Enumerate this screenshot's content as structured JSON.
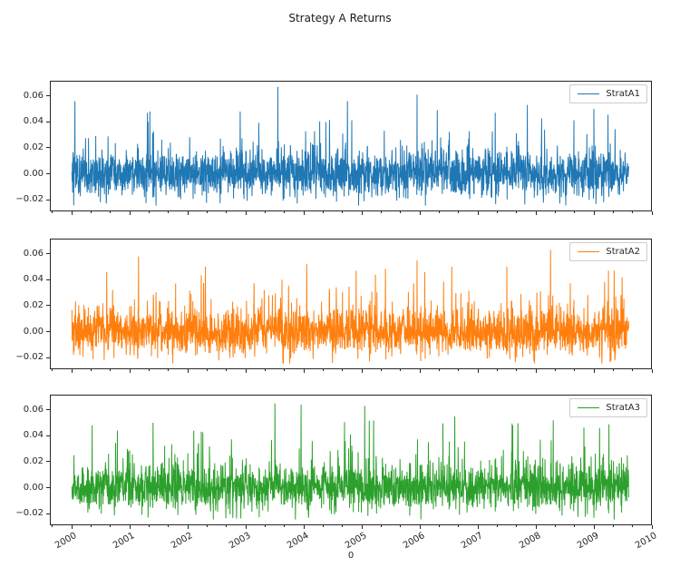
{
  "figure": {
    "title": "Strategy A Returns",
    "background": "#ffffff"
  },
  "chart_data": {
    "type": "line",
    "title": "Strategy A Returns",
    "xlabel": "0",
    "ylabel": "",
    "grid": false,
    "legend_position": "upper right",
    "n_subplots": 3,
    "shared_x": true,
    "xlim": [
      1999.62,
      2010.0
    ],
    "ylim": [
      -0.029,
      0.0717
    ],
    "x_data_range": [
      2000.0,
      2009.6
    ],
    "n_points": 2450,
    "x_ticks": {
      "values": [
        2000,
        2001,
        2002,
        2003,
        2004,
        2005,
        2006,
        2007,
        2008,
        2009,
        2010
      ],
      "labels": [
        "2000",
        "2001",
        "2002",
        "2003",
        "2004",
        "2005",
        "2006",
        "2007",
        "2008",
        "2009",
        "2010"
      ],
      "rotation_deg": 30,
      "minor_per_interval": 2
    },
    "y_ticks": {
      "values": [
        0.06,
        0.04,
        0.02,
        0.0,
        -0.02
      ],
      "labels": [
        "0.06",
        "0.04",
        "0.02",
        "0.00",
        "−0.02"
      ]
    },
    "series": [
      {
        "name": "StratA1",
        "color": "#1f77b4",
        "seed": 101,
        "noise_std": 0.0085,
        "spike_prob": 0.05,
        "spike_base": 0.012,
        "spike_scale": 0.013,
        "clip_min": -0.0245,
        "data_min": -0.0245,
        "data_max": 0.067,
        "peaks": [
          {
            "x": 2000.05,
            "y": 0.056
          },
          {
            "x": 2001.3,
            "y": 0.047
          },
          {
            "x": 2002.9,
            "y": 0.048
          },
          {
            "x": 2003.55,
            "y": 0.067
          },
          {
            "x": 2004.75,
            "y": 0.056
          },
          {
            "x": 2005.95,
            "y": 0.061
          },
          {
            "x": 2006.3,
            "y": 0.049
          },
          {
            "x": 2007.3,
            "y": 0.047
          },
          {
            "x": 2007.85,
            "y": 0.053
          },
          {
            "x": 2009.0,
            "y": 0.05
          }
        ]
      },
      {
        "name": "StratA2",
        "color": "#ff7f0e",
        "seed": 202,
        "noise_std": 0.0085,
        "spike_prob": 0.05,
        "spike_base": 0.012,
        "spike_scale": 0.013,
        "clip_min": -0.0245,
        "data_min": -0.0245,
        "data_max": 0.063,
        "peaks": [
          {
            "x": 2000.6,
            "y": 0.046
          },
          {
            "x": 2001.15,
            "y": 0.058
          },
          {
            "x": 2002.3,
            "y": 0.05
          },
          {
            "x": 2004.05,
            "y": 0.052
          },
          {
            "x": 2004.9,
            "y": 0.047
          },
          {
            "x": 2005.95,
            "y": 0.055
          },
          {
            "x": 2006.55,
            "y": 0.05
          },
          {
            "x": 2007.5,
            "y": 0.05
          },
          {
            "x": 2008.25,
            "y": 0.063
          },
          {
            "x": 2009.35,
            "y": 0.047
          }
        ]
      },
      {
        "name": "StratA3",
        "color": "#2ca02c",
        "seed": 303,
        "noise_std": 0.0085,
        "spike_prob": 0.05,
        "spike_base": 0.012,
        "spike_scale": 0.013,
        "clip_min": -0.0245,
        "data_min": -0.0245,
        "data_max": 0.065,
        "peaks": [
          {
            "x": 2000.35,
            "y": 0.048
          },
          {
            "x": 2001.4,
            "y": 0.05
          },
          {
            "x": 2002.1,
            "y": 0.044
          },
          {
            "x": 2003.5,
            "y": 0.065
          },
          {
            "x": 2003.95,
            "y": 0.064
          },
          {
            "x": 2005.05,
            "y": 0.063
          },
          {
            "x": 2006.6,
            "y": 0.055
          },
          {
            "x": 2007.6,
            "y": 0.048
          },
          {
            "x": 2008.3,
            "y": 0.052
          },
          {
            "x": 2009.1,
            "y": 0.046
          }
        ]
      }
    ]
  }
}
